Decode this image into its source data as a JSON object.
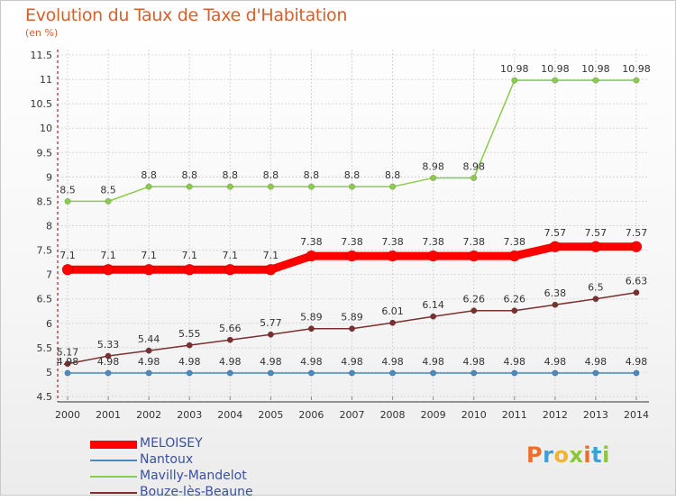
{
  "header": {
    "title": "Evolution du Taux de Taxe d'Habitation",
    "subtitle": "(en %)"
  },
  "logo": {
    "text": "Proxiti",
    "colors": [
      "#e9702a",
      "#3d9fd8",
      "#f2b430",
      "#8cc63f",
      "#e9702a",
      "#3d9fd8",
      "#8cc63f"
    ]
  },
  "chart_data": {
    "type": "line",
    "title": "Evolution du Taux de Taxe d'Habitation",
    "subtitle": "(en %)",
    "xlabel": "",
    "ylabel": "",
    "ylim": [
      4.5,
      11.5
    ],
    "yticks": [
      "4.5",
      "5",
      "5.5",
      "6",
      "6.5",
      "7",
      "7.5",
      "8",
      "8.5",
      "9",
      "9.5",
      "10",
      "10.5",
      "11",
      "11.5"
    ],
    "x": [
      "2000",
      "2001",
      "2002",
      "2003",
      "2004",
      "2005",
      "2006",
      "2007",
      "2008",
      "2009",
      "2010",
      "2011",
      "2012",
      "2013",
      "2014"
    ],
    "grid": true,
    "legend_position": "bottom-left",
    "series": [
      {
        "name": "MELOISEY",
        "color": "#ff0000",
        "width": 9,
        "values": [
          7.1,
          7.1,
          7.1,
          7.1,
          7.1,
          7.1,
          7.38,
          7.38,
          7.38,
          7.38,
          7.38,
          7.38,
          7.57,
          7.57,
          7.57
        ],
        "labels": [
          "7.1",
          "7.1",
          "7.1",
          "7.1",
          "7.1",
          "7.1",
          "7.38",
          "7.38",
          "7.38",
          "7.38",
          "7.38",
          "7.38",
          "7.57",
          "7.57",
          "7.57"
        ]
      },
      {
        "name": "Nantoux",
        "color": "#4a8ac0",
        "width": 1.5,
        "values": [
          4.98,
          4.98,
          4.98,
          4.98,
          4.98,
          4.98,
          4.98,
          4.98,
          4.98,
          4.98,
          4.98,
          4.98,
          4.98,
          4.98,
          4.98
        ],
        "labels": [
          "4.98",
          "4.98",
          "4.98",
          "4.98",
          "4.98",
          "4.98",
          "4.98",
          "4.98",
          "4.98",
          "4.98",
          "4.98",
          "4.98",
          "4.98",
          "4.98",
          "4.98"
        ]
      },
      {
        "name": "Mavilly-Mandelot",
        "color": "#8ccc4c",
        "width": 1.5,
        "values": [
          8.5,
          8.5,
          8.8,
          8.8,
          8.8,
          8.8,
          8.8,
          8.8,
          8.8,
          8.98,
          8.98,
          10.98,
          10.98,
          10.98,
          10.98
        ],
        "labels": [
          "8.5",
          "8.5",
          "8.8",
          "8.8",
          "8.8",
          "8.8",
          "8.8",
          "8.8",
          "8.8",
          "8.98",
          "8.98",
          "10.98",
          "10.98",
          "10.98",
          "10.98"
        ]
      },
      {
        "name": "Bouze-lès-Beaune",
        "color": "#7b3030",
        "width": 1.5,
        "values": [
          5.17,
          5.33,
          5.44,
          5.55,
          5.66,
          5.77,
          5.89,
          5.89,
          6.01,
          6.14,
          6.26,
          6.26,
          6.38,
          6.5,
          6.63
        ],
        "labels": [
          "5.17",
          "5.33",
          "5.44",
          "5.55",
          "5.66",
          "5.77",
          "5.89",
          "5.89",
          "6.01",
          "6.14",
          "6.26",
          "6.26",
          "6.38",
          "6.5",
          "6.63"
        ]
      }
    ]
  }
}
